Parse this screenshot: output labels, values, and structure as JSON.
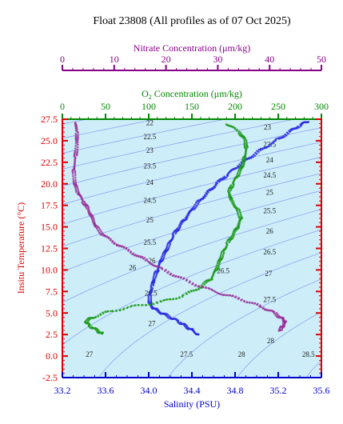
{
  "title": "Float 23808  (All profiles as of 07 Oct 2025)",
  "colors": {
    "panel_bg": "#cdeef9",
    "temperature_axis": "#dd0000",
    "salinity_axis": "#0000cc",
    "oxygen_axis": "#008800",
    "nitrate_axis": "#880088",
    "isopycnal": "#8899ee"
  },
  "chart_data": {
    "type": "scatter",
    "title": "Float 23808  (All profiles as of 07 Oct 2025)",
    "grid": false,
    "axes": {
      "temperature": {
        "label": "Insitu Temperature (°C)",
        "side": "left",
        "range": [
          -2.5,
          27.5
        ],
        "ticks": [
          -2.5,
          0.0,
          2.5,
          5.0,
          7.5,
          10.0,
          12.5,
          15.0,
          17.5,
          20.0,
          22.5,
          25.0,
          27.5
        ],
        "tick_labels": [
          "-2.5",
          "0.0",
          "2.5",
          "5.0",
          "7.5",
          "10.0",
          "12.5",
          "15.0",
          "17.5",
          "20.0",
          "22.5",
          "25.0",
          "27.5"
        ]
      },
      "salinity": {
        "label": "Salinity (PSU)",
        "side": "bottom",
        "range": [
          33.2,
          35.6
        ],
        "ticks": [
          33.2,
          33.6,
          34.0,
          34.4,
          34.8,
          35.2,
          35.6
        ],
        "tick_labels": [
          "33.2",
          "33.6",
          "34.0",
          "34.4",
          "34.8",
          "35.2",
          "35.6"
        ]
      },
      "oxygen": {
        "label_main": "O",
        "label_sub": "2",
        "label_rest": " Concentration (μm/kg)",
        "side": "top",
        "range": [
          0,
          300
        ],
        "ticks": [
          0,
          50,
          100,
          150,
          200,
          250,
          300
        ],
        "tick_labels": [
          "0",
          "50",
          "100",
          "150",
          "200",
          "250",
          "300"
        ]
      },
      "nitrate": {
        "label": "Nitrate Concentration (μm/kg)",
        "side": "top",
        "range": [
          0,
          50
        ],
        "ticks": [
          0,
          10,
          20,
          30,
          40,
          50
        ],
        "tick_labels": [
          "0",
          "10",
          "20",
          "30",
          "40",
          "50"
        ]
      }
    },
    "isopycnal_labels": [
      {
        "text": "22",
        "s": 34.01,
        "t": 26.8
      },
      {
        "text": "22.5",
        "s": 34.01,
        "t": 25.2
      },
      {
        "text": "23",
        "s": 34.01,
        "t": 23.6
      },
      {
        "text": "23.5",
        "s": 34.01,
        "t": 21.8
      },
      {
        "text": "24",
        "s": 34.01,
        "t": 19.9
      },
      {
        "text": "24.5",
        "s": 34.01,
        "t": 17.8
      },
      {
        "text": "25",
        "s": 34.01,
        "t": 15.5
      },
      {
        "text": "25.5",
        "s": 34.01,
        "t": 12.9
      },
      {
        "text": "26",
        "s": 33.85,
        "t": 10.0
      },
      {
        "text": "26",
        "s": 34.03,
        "t": 10.8
      },
      {
        "text": "26.5",
        "s": 34.02,
        "t": 7.0
      },
      {
        "text": "26.5",
        "s": 34.69,
        "t": 9.6
      },
      {
        "text": "27",
        "s": 34.03,
        "t": 3.5
      },
      {
        "text": "27",
        "s": 35.11,
        "t": 9.3
      },
      {
        "text": "27.5",
        "s": 35.12,
        "t": 6.3
      },
      {
        "text": "28",
        "s": 35.13,
        "t": 1.5
      },
      {
        "text": "23",
        "s": 35.1,
        "t": 26.3
      },
      {
        "text": "23.5",
        "s": 35.12,
        "t": 24.3
      },
      {
        "text": "24",
        "s": 35.12,
        "t": 22.5
      },
      {
        "text": "24.5",
        "s": 35.12,
        "t": 20.7
      },
      {
        "text": "25",
        "s": 35.12,
        "t": 18.7
      },
      {
        "text": "25.5",
        "s": 35.12,
        "t": 16.6
      },
      {
        "text": "26",
        "s": 35.12,
        "t": 14.2
      },
      {
        "text": "26.5",
        "s": 35.12,
        "t": 11.8
      },
      {
        "text": "27",
        "s": 33.45,
        "t": -0.1
      },
      {
        "text": "27.5",
        "s": 34.35,
        "t": -0.1
      },
      {
        "text": "28",
        "s": 34.86,
        "t": -0.1
      },
      {
        "text": "28.5",
        "s": 35.48,
        "t": -0.1
      }
    ],
    "series": [
      {
        "axis": "salinity",
        "color": "#2a2ae0",
        "points": [
          [
            35.48,
            27.3
          ],
          [
            35.4,
            26.8
          ],
          [
            35.3,
            26.0
          ],
          [
            35.18,
            25.0
          ],
          [
            35.05,
            24.0
          ],
          [
            34.93,
            23.0
          ],
          [
            34.82,
            22.0
          ],
          [
            34.72,
            21.0
          ],
          [
            34.63,
            20.0
          ],
          [
            34.55,
            19.0
          ],
          [
            34.47,
            18.0
          ],
          [
            34.4,
            17.0
          ],
          [
            34.34,
            16.0
          ],
          [
            34.28,
            15.0
          ],
          [
            34.23,
            14.0
          ],
          [
            34.19,
            13.0
          ],
          [
            34.15,
            12.0
          ],
          [
            34.11,
            11.0
          ],
          [
            34.08,
            10.0
          ],
          [
            34.05,
            9.0
          ],
          [
            34.03,
            8.0
          ],
          [
            34.01,
            7.0
          ],
          [
            34.01,
            6.0
          ],
          [
            34.05,
            5.5
          ],
          [
            34.12,
            5.0
          ],
          [
            34.2,
            4.5
          ],
          [
            34.28,
            4.0
          ],
          [
            34.34,
            3.5
          ],
          [
            34.4,
            3.0
          ],
          [
            34.46,
            2.5
          ]
        ]
      },
      {
        "axis": "oxygen",
        "color": "#1e9a1e",
        "points": [
          [
            190,
            27.0
          ],
          [
            205,
            26.0
          ],
          [
            212,
            25.0
          ],
          [
            213,
            24.0
          ],
          [
            211,
            23.0
          ],
          [
            208,
            22.0
          ],
          [
            203,
            21.0
          ],
          [
            197,
            20.0
          ],
          [
            193,
            19.0
          ],
          [
            196,
            18.0
          ],
          [
            203,
            17.0
          ],
          [
            207,
            16.0
          ],
          [
            203,
            15.0
          ],
          [
            197,
            14.0
          ],
          [
            191,
            13.0
          ],
          [
            186,
            12.0
          ],
          [
            182,
            11.0
          ],
          [
            178,
            10.0
          ],
          [
            172,
            9.0
          ],
          [
            160,
            8.0
          ],
          [
            140,
            7.0
          ],
          [
            115,
            6.3
          ],
          [
            85,
            5.8
          ],
          [
            55,
            5.2
          ],
          [
            35,
            4.5
          ],
          [
            27,
            4.0
          ],
          [
            32,
            3.5
          ],
          [
            40,
            3.0
          ],
          [
            46,
            2.6
          ]
        ]
      },
      {
        "axis": "nitrate",
        "color": "#993399",
        "points": [
          [
            2.5,
            27.2
          ],
          [
            2.8,
            26.0
          ],
          [
            2.8,
            24.5
          ],
          [
            2.5,
            23.0
          ],
          [
            2.2,
            21.5
          ],
          [
            2.4,
            20.0
          ],
          [
            3.0,
            19.0
          ],
          [
            4.0,
            18.0
          ],
          [
            5.0,
            17.0
          ],
          [
            5.8,
            16.0
          ],
          [
            6.5,
            15.0
          ],
          [
            8.0,
            14.0
          ],
          [
            10.5,
            13.0
          ],
          [
            13.5,
            12.0
          ],
          [
            16.5,
            11.0
          ],
          [
            19.5,
            10.0
          ],
          [
            23.0,
            9.0
          ],
          [
            27.0,
            8.0
          ],
          [
            31.0,
            7.2
          ],
          [
            35.0,
            6.5
          ],
          [
            38.5,
            5.7
          ],
          [
            41.0,
            5.0
          ],
          [
            42.5,
            4.3
          ],
          [
            43.0,
            4.0
          ],
          [
            42.6,
            3.5
          ],
          [
            42.0,
            3.0
          ]
        ]
      }
    ]
  }
}
